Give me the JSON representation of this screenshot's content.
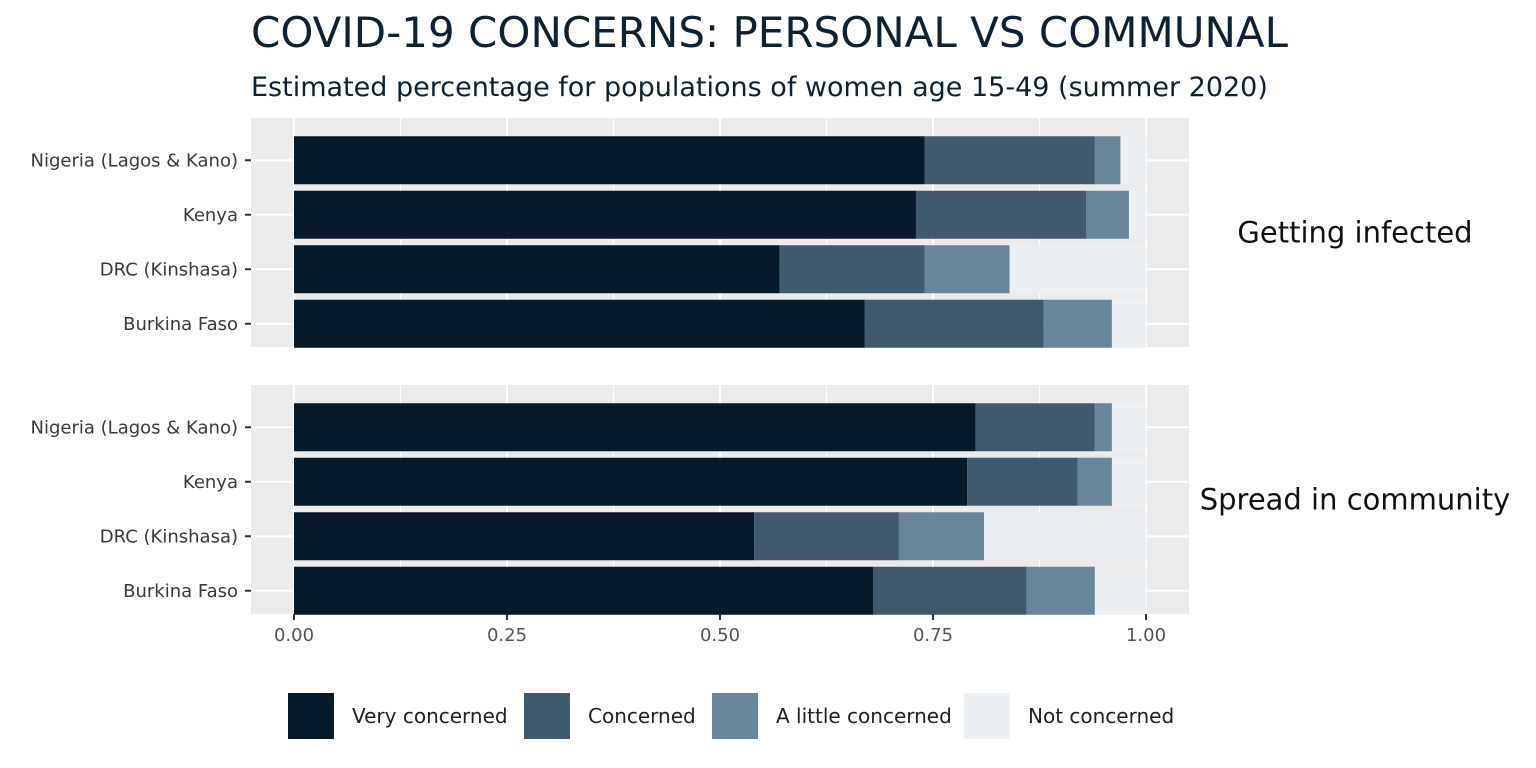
{
  "chart_data": {
    "type": "bar",
    "orientation": "horizontal",
    "stacked": true,
    "title": "COVID-19 CONCERNS: PERSONAL VS COMMUNAL",
    "subtitle": "Estimated percentage for populations of women age 15-49 (summer 2020)",
    "categories": [
      "Nigeria (Lagos & Kano)",
      "Kenya",
      "DRC (Kinshasa)",
      "Burkina Faso"
    ],
    "xlim": [
      0,
      1
    ],
    "xticks": [
      "0.00",
      "0.25",
      "0.50",
      "0.75",
      "1.00"
    ],
    "grid": true,
    "legend_position": "bottom",
    "series_names": [
      "Very concerned",
      "Concerned",
      "A little concerned",
      "Not concerned"
    ],
    "series_colors": [
      "#061a2a",
      "#3f5a6c",
      "#69869b",
      "#edf0f3"
    ],
    "facets": [
      {
        "label": "Getting infected",
        "series": [
          {
            "name": "Very concerned",
            "values": [
              0.74,
              0.73,
              0.57,
              0.67
            ]
          },
          {
            "name": "Concerned",
            "values": [
              0.2,
              0.2,
              0.17,
              0.21
            ]
          },
          {
            "name": "A little concerned",
            "values": [
              0.03,
              0.05,
              0.1,
              0.08
            ]
          },
          {
            "name": "Not concerned",
            "values": [
              0.03,
              0.02,
              0.16,
              0.04
            ]
          }
        ]
      },
      {
        "label": "Spread in community",
        "series": [
          {
            "name": "Very concerned",
            "values": [
              0.8,
              0.79,
              0.54,
              0.68
            ]
          },
          {
            "name": "Concerned",
            "values": [
              0.14,
              0.13,
              0.17,
              0.18
            ]
          },
          {
            "name": "A little concerned",
            "values": [
              0.02,
              0.04,
              0.1,
              0.08
            ]
          },
          {
            "name": "Not concerned",
            "values": [
              0.04,
              0.04,
              0.19,
              0.06
            ]
          }
        ]
      }
    ]
  }
}
